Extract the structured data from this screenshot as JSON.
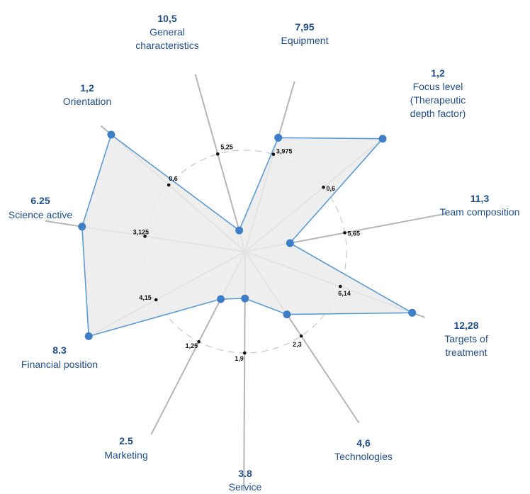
{
  "chart_data": {
    "type": "radar",
    "colors": {
      "axis": "#b5b5b5",
      "fill": "#ebebeb",
      "outline": "#5b9bd5",
      "point": "#3e7ec8",
      "label": "#1f4e8c",
      "midpoint": "#111111",
      "ring": "#bdbdbd"
    },
    "axes": [
      {
        "label": [
          "General",
          "characteristics"
        ],
        "max_label": "10,5",
        "mid_label": "5,25",
        "max": 10.5,
        "value": 1.3
      },
      {
        "label": [
          "Equipment"
        ],
        "max_label": "7,95",
        "mid_label": "3,975",
        "max": 7.95,
        "value": 5.3
      },
      {
        "label": [
          "Focus level",
          "(Therapeutic",
          "depth factor)"
        ],
        "max_label": "1,2",
        "mid_label": "0,6",
        "max": 1.2,
        "value": 1.2
      },
      {
        "label": [
          "Team composition"
        ],
        "max_label": "11,3",
        "mid_label": "5,65",
        "max": 11.3,
        "value": 2.9
      },
      {
        "label": [
          "Targets of",
          "treatment"
        ],
        "max_label": "12,28",
        "mid_label": "6,14",
        "max": 12.28,
        "value": 12.28
      },
      {
        "label": [
          "Technologies"
        ],
        "max_label": "4,6",
        "mid_label": "2,3",
        "max": 4.6,
        "value": 1.95
      },
      {
        "label": [
          "Service"
        ],
        "max_label": "3.8",
        "mid_label": "1,9",
        "max": 3.8,
        "value": 1.0
      },
      {
        "label": [
          "Marketing"
        ],
        "max_label": "2.5",
        "mid_label": "1,25",
        "max": 2.5,
        "value": 0.75
      },
      {
        "label": [
          "Financial position"
        ],
        "max_label": "8.3",
        "mid_label": "4,15",
        "max": 8.3,
        "value": 8.3
      },
      {
        "label": [
          "Science active"
        ],
        "max_label": "6.25",
        "mid_label": "3,125",
        "max": 6.25,
        "value": 5.8
      },
      {
        "label": [
          "Orientation"
        ],
        "max_label": "1,2",
        "mid_label": "0,6",
        "max": 1.2,
        "value": 1.2
      }
    ]
  }
}
